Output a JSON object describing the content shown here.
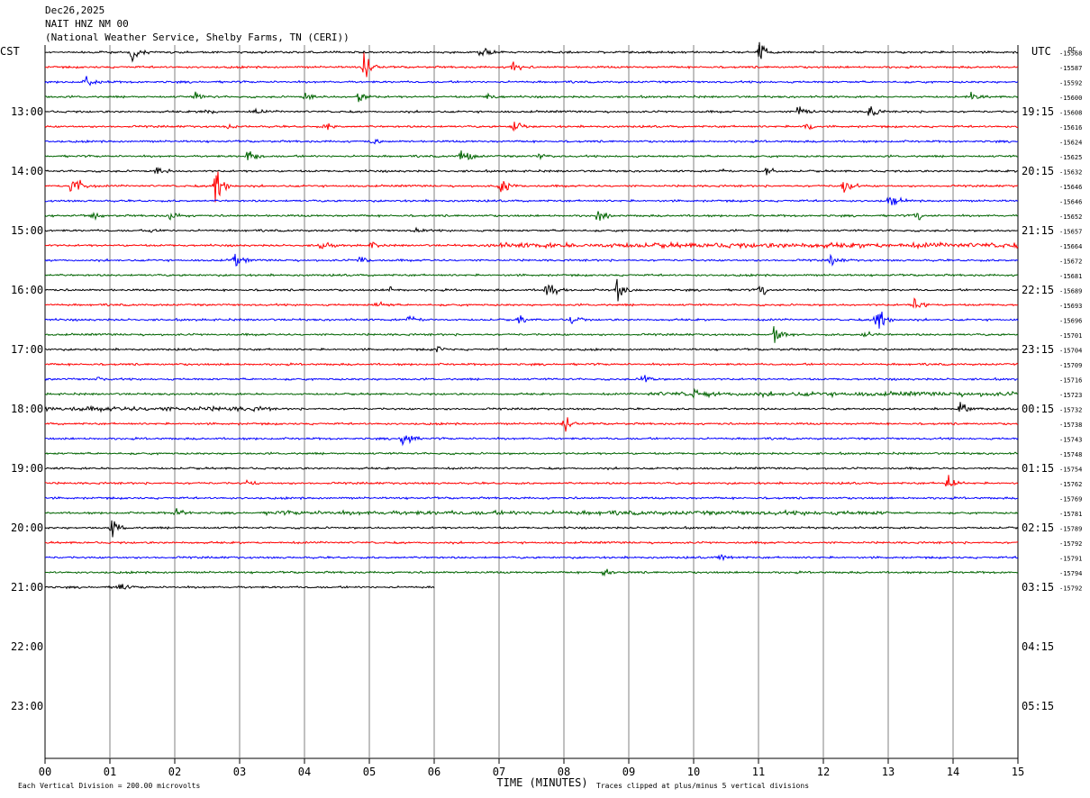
{
  "header": {
    "date": "Dec26,2025",
    "station": "NAIT HNZ NM 00",
    "agency": "(National Weather Service, Shelby Farms, TN (CERI))"
  },
  "corner": {
    "left_label": "CST",
    "right_label": "UTC",
    "dc_label": "DC"
  },
  "footer": {
    "x_axis_label": "TIME (MINUTES)",
    "scale_note": "Each Vertical Division =  200.00 microvolts",
    "clip_note": "Traces clipped at plus/minus 5 vertical divisions"
  },
  "colors": {
    "cycle": [
      "#000000",
      "#ff0000",
      "#0000ff",
      "#006400"
    ],
    "grid": "#808080"
  },
  "chart_data": {
    "type": "line",
    "title": "NAIT HNZ NM 00",
    "xlabel": "TIME (MINUTES)",
    "ylabel_left": "CST",
    "ylabel_right": "UTC",
    "xlim": [
      0,
      15
    ],
    "x_ticks": [
      "00",
      "01",
      "02",
      "03",
      "04",
      "05",
      "06",
      "07",
      "08",
      "09",
      "10",
      "11",
      "12",
      "13",
      "14",
      "15"
    ],
    "left_hour_labels": [
      "13:00",
      "14:00",
      "15:00",
      "16:00",
      "17:00",
      "18:00",
      "19:00",
      "20:00",
      "21:00",
      "22:00",
      "23:00"
    ],
    "right_hour_labels": [
      "19:15",
      "20:15",
      "21:15",
      "22:15",
      "23:15",
      "00:15",
      "01:15",
      "02:15",
      "03:15",
      "04:15",
      "05:15"
    ],
    "trace_count": 37,
    "dc_offsets": [
      "-15568",
      "-15587",
      "-15592",
      "-15600",
      "-15608",
      "-15616",
      "-15624",
      "-15625",
      "-15632",
      "-15646",
      "-15646",
      "-15652",
      "-15657",
      "-15664",
      "-15672",
      "-15681",
      "-15689",
      "-15693",
      "-15696",
      "-15701",
      "-15704",
      "-15709",
      "-15716",
      "-15723",
      "-15732",
      "-15738",
      "-15743",
      "-15748",
      "-15754",
      "-15762",
      "-15769",
      "-15781",
      "-15789",
      "-15792",
      "-15791",
      "-15794",
      "-15792"
    ],
    "last_trace_end_minute": 6.0,
    "events": [
      {
        "trace": 0,
        "minute": 1.3,
        "amp": 1.4
      },
      {
        "trace": 0,
        "minute": 6.7,
        "amp": 1.3
      },
      {
        "trace": 0,
        "minute": 11.0,
        "amp": 1.6
      },
      {
        "trace": 1,
        "minute": 4.9,
        "amp": 2.0
      },
      {
        "trace": 1,
        "minute": 7.2,
        "amp": 1.3
      },
      {
        "trace": 2,
        "minute": 0.6,
        "amp": 1.2
      },
      {
        "trace": 3,
        "minute": 2.3,
        "amp": 0.9
      },
      {
        "trace": 3,
        "minute": 4.0,
        "amp": 1.0
      },
      {
        "trace": 3,
        "minute": 4.8,
        "amp": 1.0
      },
      {
        "trace": 3,
        "minute": 6.8,
        "amp": 0.8
      },
      {
        "trace": 3,
        "minute": 14.2,
        "amp": 1.2
      },
      {
        "trace": 4,
        "minute": 2.4,
        "amp": 0.7
      },
      {
        "trace": 4,
        "minute": 3.2,
        "amp": 0.7
      },
      {
        "trace": 4,
        "minute": 11.6,
        "amp": 0.9
      },
      {
        "trace": 4,
        "minute": 12.7,
        "amp": 1.0
      },
      {
        "trace": 5,
        "minute": 2.8,
        "amp": 0.6
      },
      {
        "trace": 5,
        "minute": 4.3,
        "amp": 0.6
      },
      {
        "trace": 5,
        "minute": 7.2,
        "amp": 1.2
      },
      {
        "trace": 5,
        "minute": 11.7,
        "amp": 0.7
      },
      {
        "trace": 6,
        "minute": 5.0,
        "amp": 0.9
      },
      {
        "trace": 7,
        "minute": 3.1,
        "amp": 1.1
      },
      {
        "trace": 7,
        "minute": 6.4,
        "amp": 1.6
      },
      {
        "trace": 7,
        "minute": 7.6,
        "amp": 0.6
      },
      {
        "trace": 8,
        "minute": 1.7,
        "amp": 1.0
      },
      {
        "trace": 8,
        "minute": 10.4,
        "amp": 0.6
      },
      {
        "trace": 8,
        "minute": 11.1,
        "amp": 0.8
      },
      {
        "trace": 9,
        "minute": 0.4,
        "amp": 2.2
      },
      {
        "trace": 9,
        "minute": 2.6,
        "amp": 2.4
      },
      {
        "trace": 9,
        "minute": 7.0,
        "amp": 1.8
      },
      {
        "trace": 9,
        "minute": 12.3,
        "amp": 1.5
      },
      {
        "trace": 10,
        "minute": 13.0,
        "amp": 1.3
      },
      {
        "trace": 11,
        "minute": 0.7,
        "amp": 0.8
      },
      {
        "trace": 11,
        "minute": 1.9,
        "amp": 0.7
      },
      {
        "trace": 11,
        "minute": 8.5,
        "amp": 0.9
      },
      {
        "trace": 11,
        "minute": 13.4,
        "amp": 0.8
      },
      {
        "trace": 12,
        "minute": 1.6,
        "amp": 0.9
      },
      {
        "trace": 12,
        "minute": 5.7,
        "amp": 0.5
      },
      {
        "trace": 13,
        "minute": 4.2,
        "amp": 1.2
      },
      {
        "trace": 13,
        "minute": 5.0,
        "amp": 0.7
      },
      {
        "trace": 14,
        "minute": 2.9,
        "amp": 1.3
      },
      {
        "trace": 14,
        "minute": 4.8,
        "amp": 0.8
      },
      {
        "trace": 14,
        "minute": 12.1,
        "amp": 0.9
      },
      {
        "trace": 16,
        "minute": 5.3,
        "amp": 0.6
      },
      {
        "trace": 16,
        "minute": 7.7,
        "amp": 1.5
      },
      {
        "trace": 16,
        "minute": 8.8,
        "amp": 1.8
      },
      {
        "trace": 16,
        "minute": 11.0,
        "amp": 1.0
      },
      {
        "trace": 17,
        "minute": 5.1,
        "amp": 0.5
      },
      {
        "trace": 17,
        "minute": 13.4,
        "amp": 1.2
      },
      {
        "trace": 18,
        "minute": 5.6,
        "amp": 1.1
      },
      {
        "trace": 18,
        "minute": 7.3,
        "amp": 0.8
      },
      {
        "trace": 18,
        "minute": 8.1,
        "amp": 0.8
      },
      {
        "trace": 18,
        "minute": 12.8,
        "amp": 1.8
      },
      {
        "trace": 19,
        "minute": 11.2,
        "amp": 1.5
      },
      {
        "trace": 19,
        "minute": 12.6,
        "amp": 0.7
      },
      {
        "trace": 20,
        "minute": 6.0,
        "amp": 0.6
      },
      {
        "trace": 22,
        "minute": 0.8,
        "amp": 0.5
      },
      {
        "trace": 22,
        "minute": 9.2,
        "amp": 0.6
      },
      {
        "trace": 23,
        "minute": 10.0,
        "amp": 1.3
      },
      {
        "trace": 24,
        "minute": 14.1,
        "amp": 1.4
      },
      {
        "trace": 25,
        "minute": 8.0,
        "amp": 1.2
      },
      {
        "trace": 26,
        "minute": 5.5,
        "amp": 1.5
      },
      {
        "trace": 29,
        "minute": 3.1,
        "amp": 0.5
      },
      {
        "trace": 29,
        "minute": 13.9,
        "amp": 1.4
      },
      {
        "trace": 31,
        "minute": 2.0,
        "amp": 0.9
      },
      {
        "trace": 32,
        "minute": 1.0,
        "amp": 1.5
      },
      {
        "trace": 34,
        "minute": 10.4,
        "amp": 0.6
      },
      {
        "trace": 35,
        "minute": 8.6,
        "amp": 1.0
      },
      {
        "trace": 36,
        "minute": 1.1,
        "amp": 0.9
      }
    ],
    "noisy_segments": [
      {
        "trace": 13,
        "start": 6.8,
        "end": 15.0,
        "level": 2.2
      },
      {
        "trace": 23,
        "start": 9.3,
        "end": 15.0,
        "level": 1.9
      },
      {
        "trace": 24,
        "start": 0.0,
        "end": 3.5,
        "level": 2.0
      },
      {
        "trace": 31,
        "start": 3.4,
        "end": 13.0,
        "level": 1.8
      }
    ]
  }
}
